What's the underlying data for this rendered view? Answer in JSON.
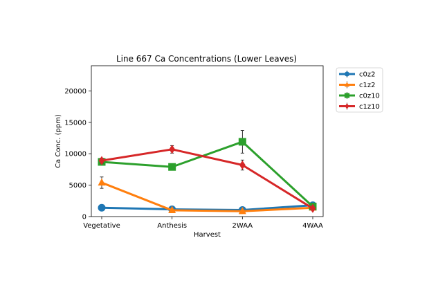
{
  "chart_data": {
    "type": "line",
    "title": "Line 667 Ca Concentrations (Lower Leaves)",
    "xlabel": "Harvest",
    "ylabel": "Ca Conc. (ppm)",
    "categories": [
      "Vegetative",
      "Anthesis",
      "2WAA",
      "4WAA"
    ],
    "ylim": [
      0,
      24000
    ],
    "yticks": [
      0,
      5000,
      10000,
      15000,
      20000
    ],
    "legend_position": "outside-top-right",
    "grid": false,
    "series": [
      {
        "name": "c0z2",
        "color": "#1f77b4",
        "marker": "circle",
        "values": [
          1400,
          1150,
          1050,
          1800
        ],
        "errors": [
          150,
          120,
          100,
          200
        ]
      },
      {
        "name": "c1z2",
        "color": "#ff7f0e",
        "marker": "triangle-up",
        "values": [
          5400,
          1000,
          850,
          1400
        ],
        "errors": [
          900,
          150,
          100,
          150
        ]
      },
      {
        "name": "c0z10",
        "color": "#2ca02c",
        "marker": "square",
        "values": [
          8700,
          7900,
          11900,
          1600
        ],
        "errors": [
          400,
          300,
          1800,
          200
        ]
      },
      {
        "name": "c1z10",
        "color": "#d62728",
        "marker": "diamond",
        "values": [
          8900,
          10700,
          8200,
          1300
        ],
        "errors": [
          400,
          600,
          800,
          200
        ]
      }
    ]
  }
}
